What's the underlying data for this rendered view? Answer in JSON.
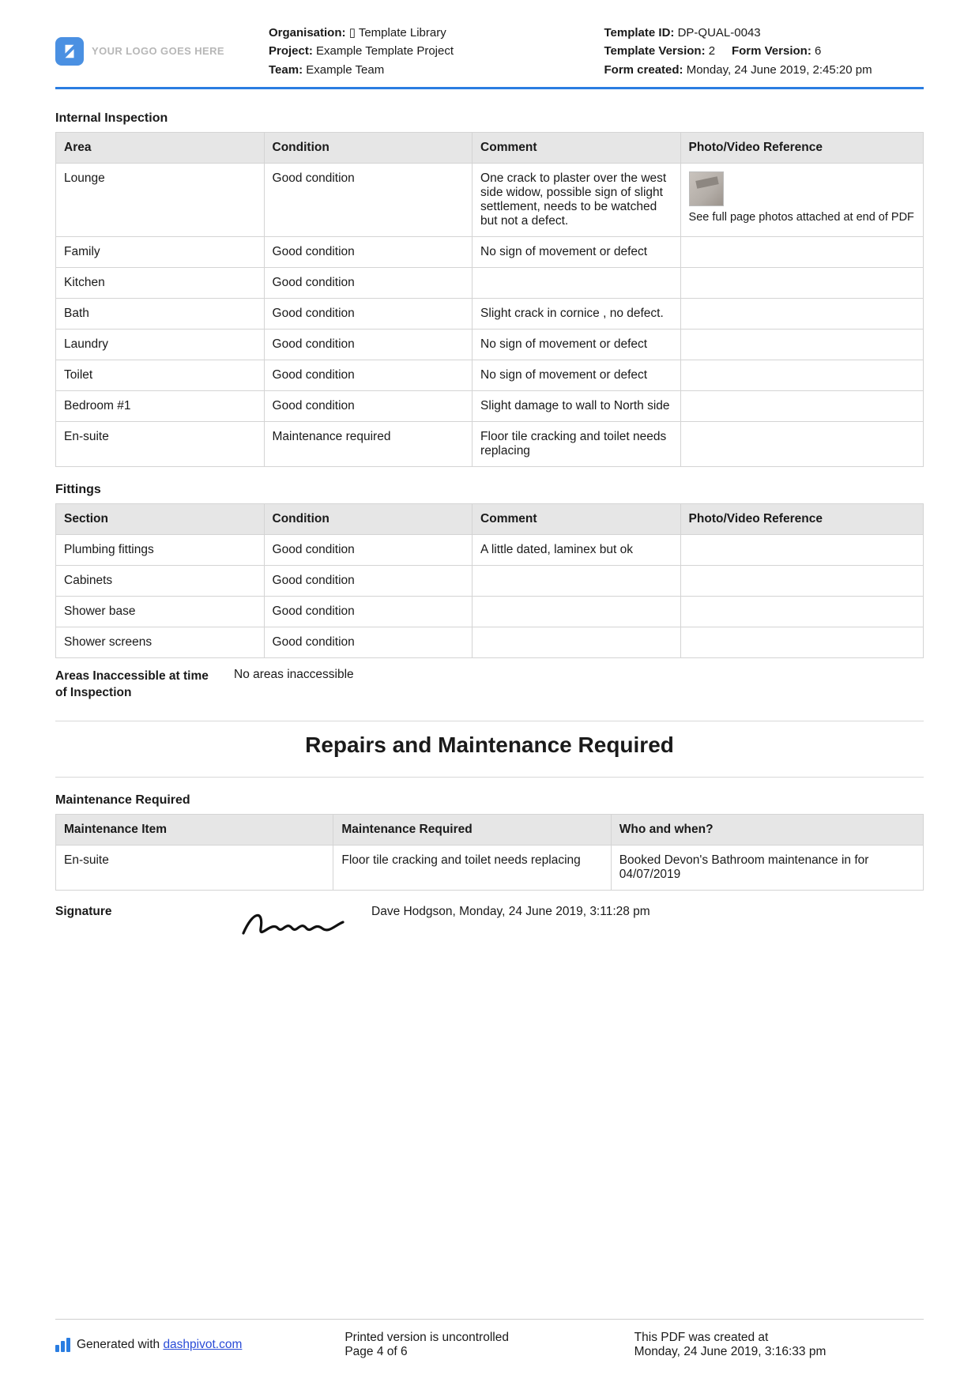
{
  "header": {
    "logo_text": "YOUR LOGO GOES HERE",
    "org_label": "Organisation:",
    "org_value": "▯ Template Library",
    "project_label": "Project:",
    "project_value": "Example Template Project",
    "team_label": "Team:",
    "team_value": "Example Team",
    "tid_label": "Template ID:",
    "tid_value": "DP-QUAL-0043",
    "tver_label": "Template Version:",
    "tver_value": "2",
    "fver_label": "Form Version:",
    "fver_value": "6",
    "fcreated_label": "Form created:",
    "fcreated_value": "Monday, 24 June 2019, 2:45:20 pm"
  },
  "internal": {
    "title": "Internal Inspection",
    "cols": {
      "c1": "Area",
      "c2": "Condition",
      "c3": "Comment",
      "c4": "Photo/Video Reference"
    },
    "photo_caption": "See full page photos attached at end of PDF",
    "rows": [
      {
        "area": "Lounge",
        "cond": "Good condition",
        "comment": "One crack to plaster over the west side widow, possible sign of slight settlement, needs to be watched but not a defect."
      },
      {
        "area": "Family",
        "cond": "Good condition",
        "comment": "No sign of movement or defect"
      },
      {
        "area": "Kitchen",
        "cond": "Good condition",
        "comment": ""
      },
      {
        "area": "Bath",
        "cond": "Good condition",
        "comment": "Slight crack in cornice , no defect."
      },
      {
        "area": "Laundry",
        "cond": "Good condition",
        "comment": "No sign of movement or defect"
      },
      {
        "area": "Toilet",
        "cond": "Good condition",
        "comment": "No sign of movement or defect"
      },
      {
        "area": "Bedroom #1",
        "cond": "Good condition",
        "comment": "Slight damage to wall to North side"
      },
      {
        "area": "En-suite",
        "cond": "Maintenance required",
        "comment": "Floor tile cracking and toilet needs replacing"
      }
    ]
  },
  "fittings": {
    "title": "Fittings",
    "cols": {
      "c1": "Section",
      "c2": "Condition",
      "c3": "Comment",
      "c4": "Photo/Video Reference"
    },
    "rows": [
      {
        "section": "Plumbing fittings",
        "cond": "Good condition",
        "comment": "A little dated, laminex but ok"
      },
      {
        "section": "Cabinets",
        "cond": "Good condition",
        "comment": ""
      },
      {
        "section": "Shower base",
        "cond": "Good condition",
        "comment": ""
      },
      {
        "section": "Shower screens",
        "cond": "Good condition",
        "comment": ""
      }
    ]
  },
  "inaccessible": {
    "label": "Areas Inaccessible at time of Inspection",
    "value": "No areas inaccessible"
  },
  "repairs_heading": "Repairs and Maintenance Required",
  "maintenance": {
    "title": "Maintenance Required",
    "cols": {
      "c1": "Maintenance Item",
      "c2": "Maintenance Required",
      "c3": "Who and when?"
    },
    "rows": [
      {
        "item": "En-suite",
        "req": "Floor tile cracking and toilet needs replacing",
        "who": "Booked Devon's Bathroom maintenance in for 04/07/2019"
      }
    ]
  },
  "signature": {
    "label": "Signature",
    "meta": "Dave Hodgson, Monday, 24 June 2019, 3:11:28 pm"
  },
  "footer": {
    "gen_prefix": "Generated with ",
    "gen_link": "dashpivot.com",
    "uncontrolled": "Printed version is uncontrolled",
    "page": "Page 4 of 6",
    "created_label": "This PDF was created at",
    "created_value": "Monday, 24 June 2019, 3:16:33 pm"
  },
  "layout": {
    "internal_widths": [
      "24%",
      "24%",
      "24%",
      "28%"
    ],
    "maint_widths": [
      "32%",
      "32%",
      "36%"
    ]
  }
}
